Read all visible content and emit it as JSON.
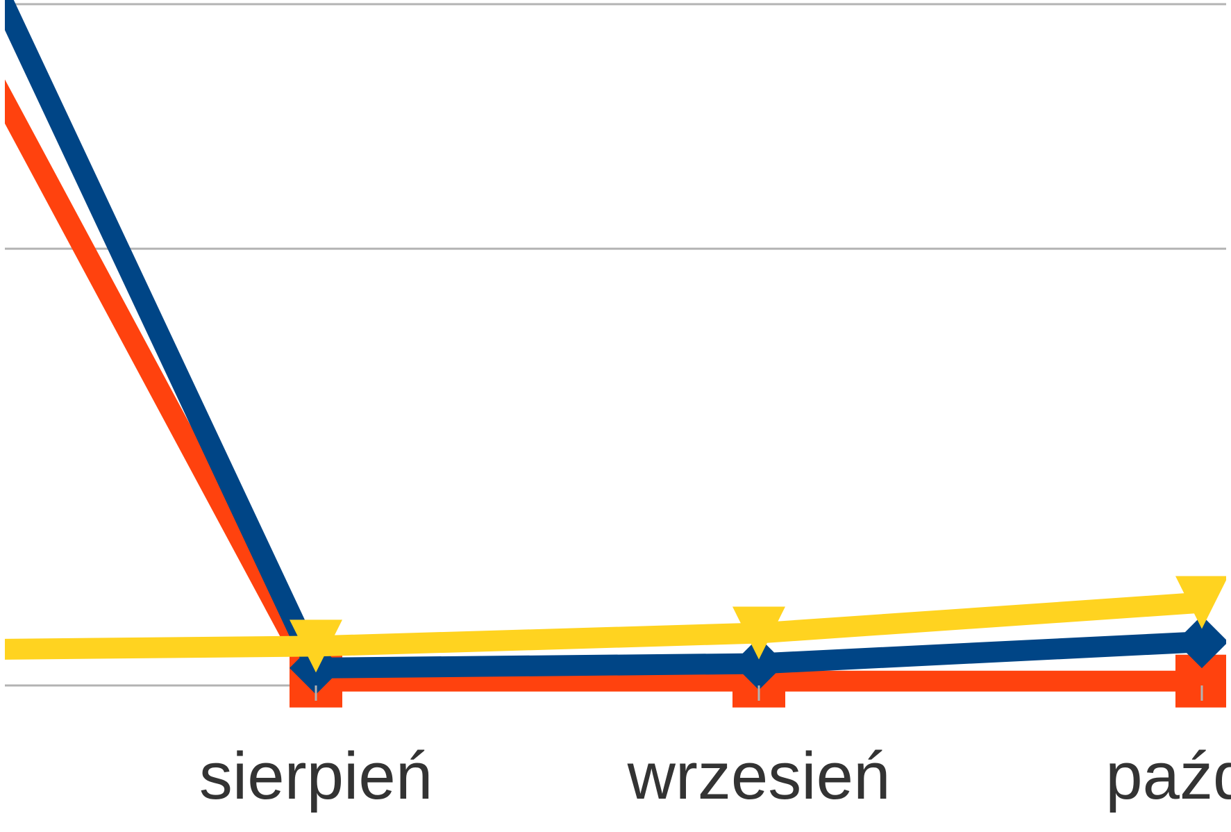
{
  "chart_data": {
    "type": "line",
    "categories": [
      null,
      "sierpień",
      "wrzesień",
      "paździ"
    ],
    "series": [
      {
        "color": "#ff420e",
        "marker": "square",
        "values": [
          1.9,
          0.01,
          0.01,
          0.01
        ]
      },
      {
        "color": "#004586",
        "marker": "diamond",
        "values": [
          2.2,
          0.04,
          0.05,
          0.1
        ]
      },
      {
        "color": "#ffd320",
        "marker": "triangle-down",
        "values": [
          0.08,
          0.09,
          0.12,
          0.19
        ]
      }
    ],
    "ylim": [
      0,
      1.56
    ],
    "yticks": [
      0,
      1
    ],
    "grid": true
  }
}
